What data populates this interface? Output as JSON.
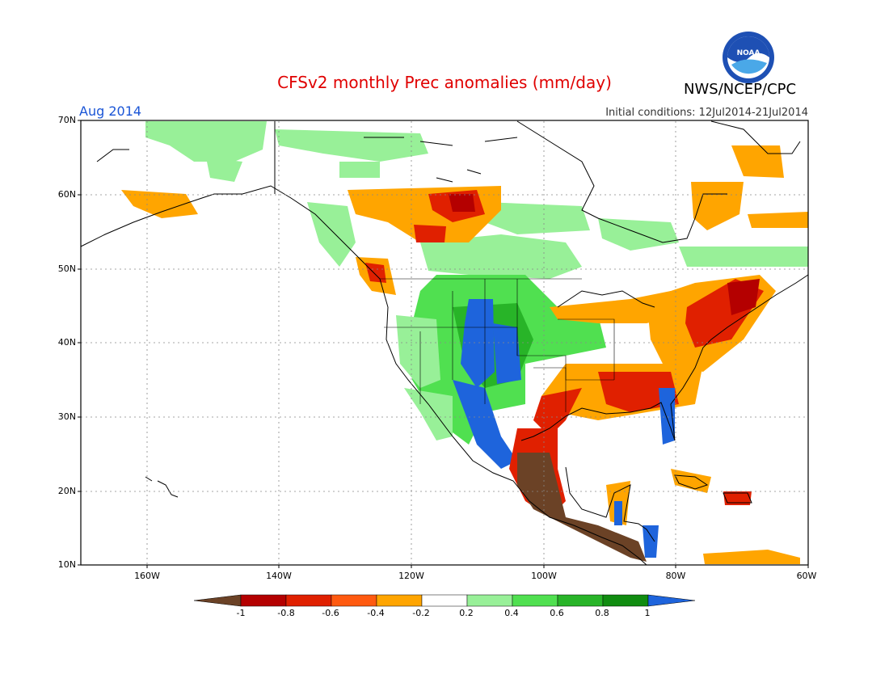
{
  "header": {
    "title": "CFSv2 monthly Prec anomalies (mm/day)",
    "agency": "NWS/NCEP/CPC",
    "period": "Aug 2014",
    "initial_conditions": "Initial conditions: 12Jul2014-21Jul2014",
    "logo_text": "NOAA"
  },
  "map": {
    "lat_labels": [
      "70N",
      "60N",
      "50N",
      "40N",
      "30N",
      "20N",
      "10N"
    ],
    "lon_labels": [
      "160W",
      "140W",
      "120W",
      "100W",
      "80W",
      "60W"
    ]
  },
  "colorbar": {
    "labels": [
      "-1",
      "-0.8",
      "-0.6",
      "-0.4",
      "-0.2",
      "0.2",
      "0.4",
      "0.6",
      "0.8",
      "1"
    ],
    "colors": [
      "#6b4226",
      "#b40000",
      "#e02000",
      "#ff5a10",
      "#ffa500",
      "#ffffff",
      "#98f098",
      "#50e050",
      "#28b428",
      "#108c10",
      "#1e64dc"
    ]
  }
}
